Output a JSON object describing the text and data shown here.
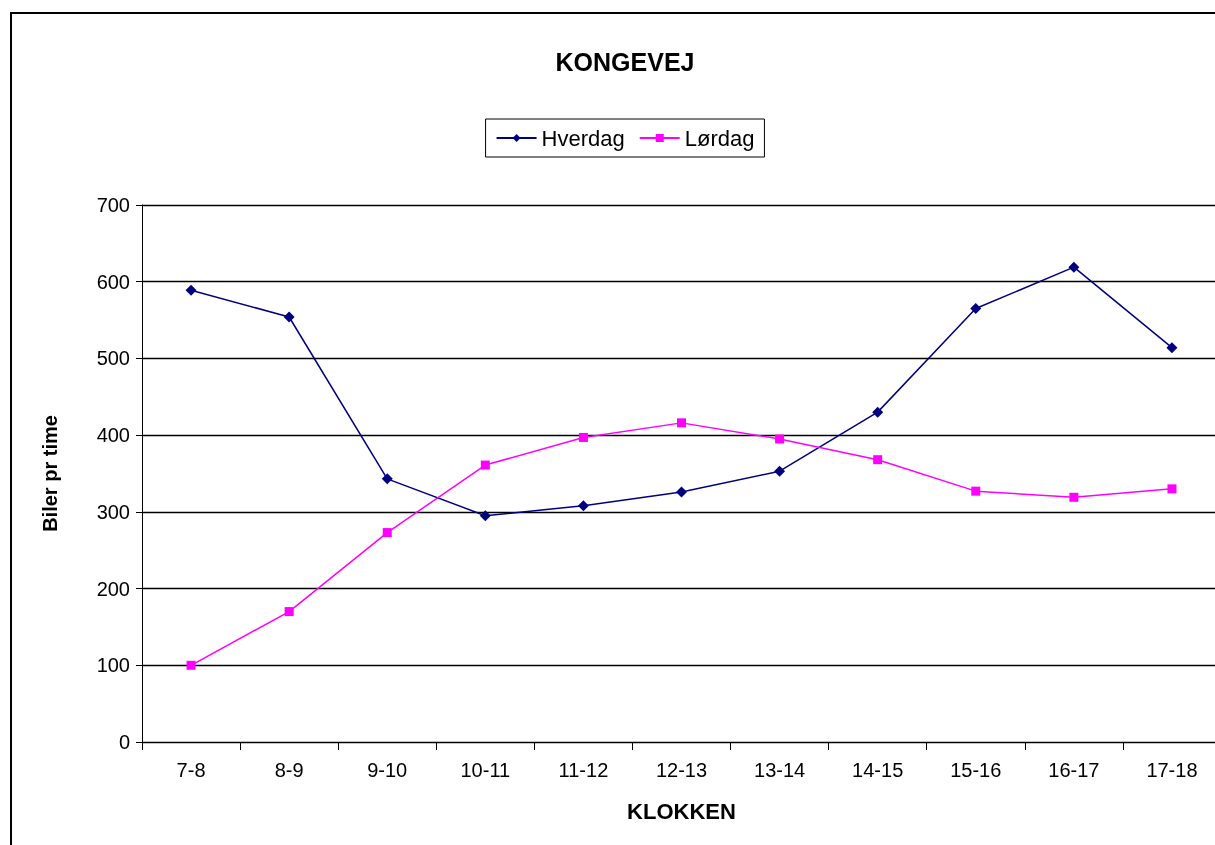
{
  "chart_data": {
    "type": "line",
    "title": "KONGEVEJ",
    "xlabel": "KLOKKEN",
    "ylabel": "Biler pr time",
    "categories": [
      "7-8",
      "8-9",
      "9-10",
      "10-11",
      "11-12",
      "12-13",
      "13-14",
      "14-15",
      "15-16",
      "16-17",
      "17-18"
    ],
    "series": [
      {
        "name": "Hverdag",
        "color": "#000080",
        "marker": "diamond",
        "values": [
          589,
          554,
          343,
          295,
          308,
          326,
          353,
          430,
          565,
          619,
          514
        ]
      },
      {
        "name": "Lørdag",
        "color": "#ff00ff",
        "marker": "square",
        "values": [
          100,
          170,
          273,
          361,
          397,
          416,
          395,
          368,
          327,
          319,
          330
        ]
      }
    ],
    "ylim": [
      0,
      700
    ],
    "yticks": [
      0,
      100,
      200,
      300,
      400,
      500,
      600,
      700
    ],
    "grid": "y",
    "legend": "top"
  }
}
